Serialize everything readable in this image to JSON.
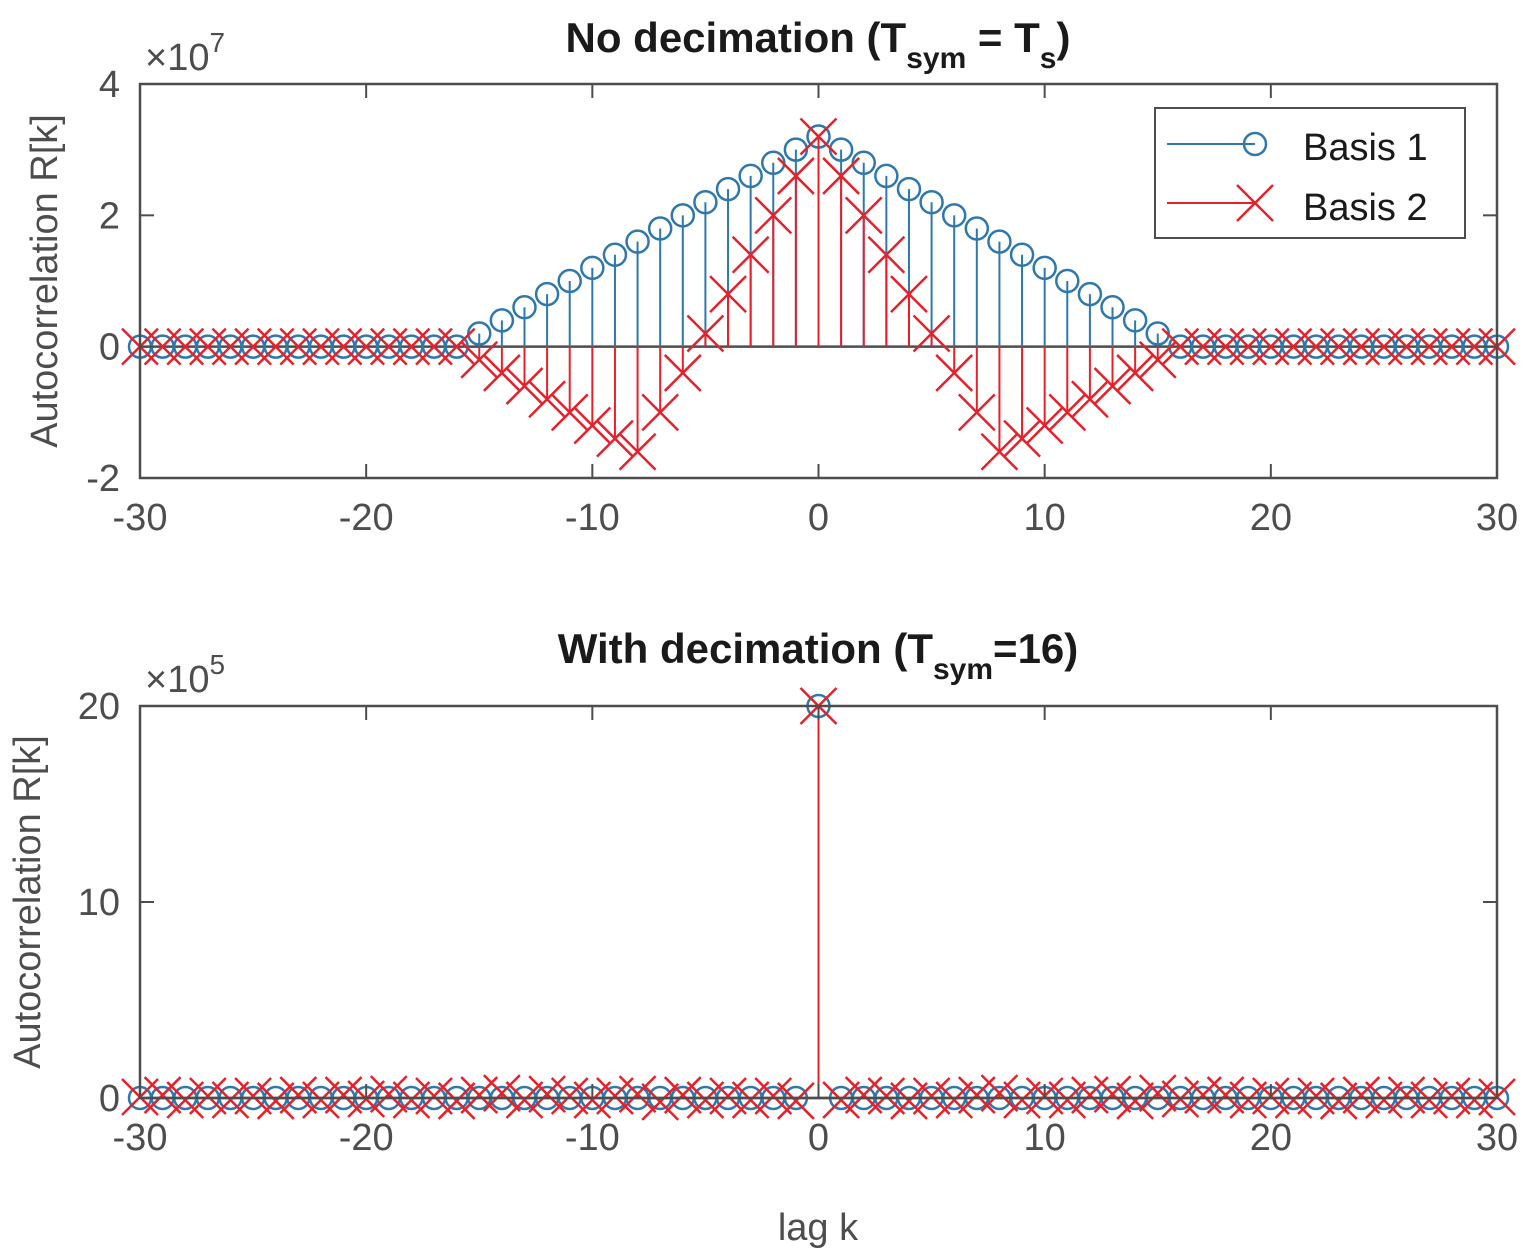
{
  "chart_data": [
    {
      "type": "stem",
      "title": "No decimation (T",
      "title_parts": {
        "main": "No decimation (T",
        "sub1": "sym",
        "mid": " = T",
        "sub2": "s",
        "end": ")"
      },
      "xlabel": "",
      "ylabel": "Autocorrelation R[k]",
      "xlim": [
        -30,
        30
      ],
      "ylim": [
        -2,
        4
      ],
      "y_multiplier": {
        "base": "×10",
        "exponent": "7"
      },
      "xticks": [
        -30,
        -20,
        -10,
        0,
        10,
        20,
        30
      ],
      "xtick_labels": [
        "-30",
        "-20",
        "-10",
        "0",
        "10",
        "20",
        "30"
      ],
      "yticks": [
        -2,
        0,
        2,
        4
      ],
      "ytick_labels": [
        "-2",
        "0",
        "2",
        "4"
      ],
      "grid": false,
      "legend": {
        "placement": "top-right",
        "entries": [
          "Basis 1",
          "Basis 2"
        ]
      },
      "x": [
        -30,
        -29,
        -28,
        -27,
        -26,
        -25,
        -24,
        -23,
        -22,
        -21,
        -20,
        -19,
        -18,
        -17,
        -16,
        -15,
        -14,
        -13,
        -12,
        -11,
        -10,
        -9,
        -8,
        -7,
        -6,
        -5,
        -4,
        -3,
        -2,
        -1,
        0,
        1,
        2,
        3,
        4,
        5,
        6,
        7,
        8,
        9,
        10,
        11,
        12,
        13,
        14,
        15,
        16,
        17,
        18,
        19,
        20,
        21,
        22,
        23,
        24,
        25,
        26,
        27,
        28,
        29,
        30
      ],
      "series": [
        {
          "name": "Basis 1",
          "color": "#2e78ad",
          "marker": "circle",
          "values": [
            0,
            0,
            0,
            0,
            0,
            0,
            0,
            0,
            0,
            0,
            0,
            0,
            0,
            0,
            0,
            0.2,
            0.4,
            0.6,
            0.8,
            1.0,
            1.2,
            1.4,
            1.6,
            1.8,
            2.0,
            2.2,
            2.4,
            2.6,
            2.8,
            3.0,
            3.2,
            3.0,
            2.8,
            2.6,
            2.4,
            2.2,
            2.0,
            1.8,
            1.6,
            1.4,
            1.2,
            1.0,
            0.8,
            0.6,
            0.4,
            0.2,
            0,
            0,
            0,
            0,
            0,
            0,
            0,
            0,
            0,
            0,
            0,
            0,
            0,
            0,
            0
          ]
        },
        {
          "name": "Basis 2",
          "color": "#e8202a",
          "marker": "x",
          "values": [
            0,
            0,
            0,
            0,
            0,
            0,
            0,
            0,
            0,
            0,
            0,
            0,
            0,
            0,
            0,
            -0.2,
            -0.4,
            -0.6,
            -0.8,
            -1.0,
            -1.2,
            -1.4,
            -1.6,
            -1.0,
            -0.4,
            0.2,
            0.8,
            1.4,
            2.0,
            2.6,
            3.2,
            2.6,
            2.0,
            1.4,
            0.8,
            0.2,
            -0.4,
            -1.0,
            -1.6,
            -1.4,
            -1.2,
            -1.0,
            -0.8,
            -0.6,
            -0.4,
            -0.2,
            0,
            0,
            0,
            0,
            0,
            0,
            0,
            0,
            0,
            0,
            0,
            0,
            0,
            0,
            0
          ]
        }
      ]
    },
    {
      "type": "stem",
      "title": "With decimation (T",
      "title_parts": {
        "main": "With decimation (T",
        "sub1": "sym",
        "end": "=16)"
      },
      "xlabel": "lag k",
      "ylabel": "Autocorrelation R[k]",
      "xlim": [
        -30,
        30
      ],
      "ylim": [
        0,
        20
      ],
      "y_multiplier": {
        "base": "×10",
        "exponent": "5"
      },
      "xticks": [
        -30,
        -20,
        -10,
        0,
        10,
        20,
        30
      ],
      "xtick_labels": [
        "-30",
        "-20",
        "-10",
        "0",
        "10",
        "20",
        "30"
      ],
      "yticks": [
        0,
        10,
        20
      ],
      "ytick_labels": [
        "0",
        "10",
        "20"
      ],
      "grid": false,
      "x": [
        -30,
        -29,
        -28,
        -27,
        -26,
        -25,
        -24,
        -23,
        -22,
        -21,
        -20,
        -19,
        -18,
        -17,
        -16,
        -15,
        -14,
        -13,
        -12,
        -11,
        -10,
        -9,
        -8,
        -7,
        -6,
        -5,
        -4,
        -3,
        -2,
        -1,
        0,
        1,
        2,
        3,
        4,
        5,
        6,
        7,
        8,
        9,
        10,
        11,
        12,
        13,
        14,
        15,
        16,
        17,
        18,
        19,
        20,
        21,
        22,
        23,
        24,
        25,
        26,
        27,
        28,
        29,
        30
      ],
      "series": [
        {
          "name": "Basis 1",
          "color": "#2e78ad",
          "marker": "circle",
          "values": [
            0,
            0,
            0,
            0,
            0,
            0,
            0,
            0,
            0,
            0,
            0,
            0,
            0,
            0,
            0,
            0,
            0,
            0,
            0,
            0,
            0,
            0,
            0,
            0,
            0,
            0,
            0,
            0,
            0,
            0,
            20,
            0,
            0,
            0,
            0,
            0,
            0,
            0,
            0,
            0,
            0,
            0,
            0,
            0,
            0,
            0,
            0,
            0,
            0,
            0,
            0,
            0,
            0,
            0,
            0,
            0,
            0,
            0,
            0,
            0,
            0
          ]
        },
        {
          "name": "Basis 2",
          "color": "#e8202a",
          "marker": "x",
          "values": [
            0.05,
            0.15,
            -0.1,
            0.1,
            -0.1,
            0.1,
            -0.15,
            0.15,
            -0.1,
            0.15,
            -0.05,
            0.2,
            -0.1,
            0.1,
            -0.15,
            0.15,
            0.25,
            -0.1,
            0.2,
            0.1,
            -0.1,
            0.1,
            0.2,
            -0.2,
            0.15,
            -0.1,
            0.1,
            -0.1,
            0.1,
            -0.15,
            20,
            -0.1,
            0.15,
            0.1,
            -0.15,
            0.1,
            -0.1,
            0.15,
            0.25,
            -0.1,
            0.1,
            -0.1,
            0.15,
            0.2,
            -0.15,
            0.25,
            -0.05,
            0.15,
            0.15,
            -0.1,
            0.1,
            -0.1,
            0.1,
            -0.15,
            0.15,
            -0.1,
            0.15,
            -0.1,
            0.1,
            -0.1,
            0.05
          ]
        }
      ]
    }
  ]
}
